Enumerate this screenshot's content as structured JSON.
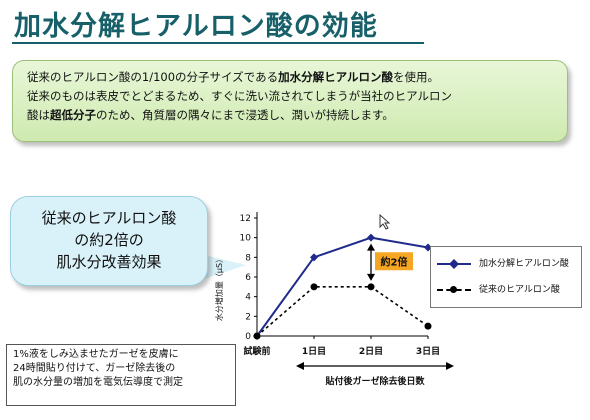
{
  "title": "加水分解ヒアルロン酸の効能",
  "intro": {
    "line1_a": "従来のヒアルロン酸の1/100の分子サイズである",
    "line1_b": "加水分解ヒアルロン酸",
    "line1_c": "を使用。",
    "line2": "従来のものは表皮でとどまるため、すぐに洗い流されてしまうが当社のヒアルロン",
    "line3_a": "酸は",
    "line3_b": "超低分子",
    "line3_c": "のため、角質層の隅々にまで浸透し、潤いが持続します。"
  },
  "callout": {
    "line1": "従来のヒアルロン酸",
    "line2": "の約2倍の",
    "line3": "肌水分改善効果"
  },
  "note": {
    "line1": "1%液をしみ込ませたガーゼを皮膚に",
    "line2": "24時間貼り付けて、ガーゼ除去後の",
    "line3": "肌の水分量の増加を電気伝導度で測定"
  },
  "colors": {
    "title": "#17606a",
    "series_main": "#1f2a8c",
    "series_old": "#000000",
    "highlight": "#f5a623"
  },
  "chart_data": {
    "type": "line",
    "categories": [
      "試験前",
      "1日目",
      "2日目",
      "3日目"
    ],
    "ylabel": "水分増加量（μS）",
    "xlabel": "貼付後ガーゼ除去後日数",
    "ylim": [
      0,
      12
    ],
    "yticks": [
      0,
      2,
      4,
      6,
      8,
      10,
      12
    ],
    "series": [
      {
        "name": "加水分解ヒアルロン酸",
        "values": [
          0,
          8,
          10,
          9
        ],
        "style": "solid",
        "marker": "diamond"
      },
      {
        "name": "従来のヒアルロン酸",
        "values": [
          0,
          5,
          5,
          1
        ],
        "style": "dashed",
        "marker": "circle"
      }
    ],
    "annotation": "約2倍",
    "legend_position": "right"
  }
}
